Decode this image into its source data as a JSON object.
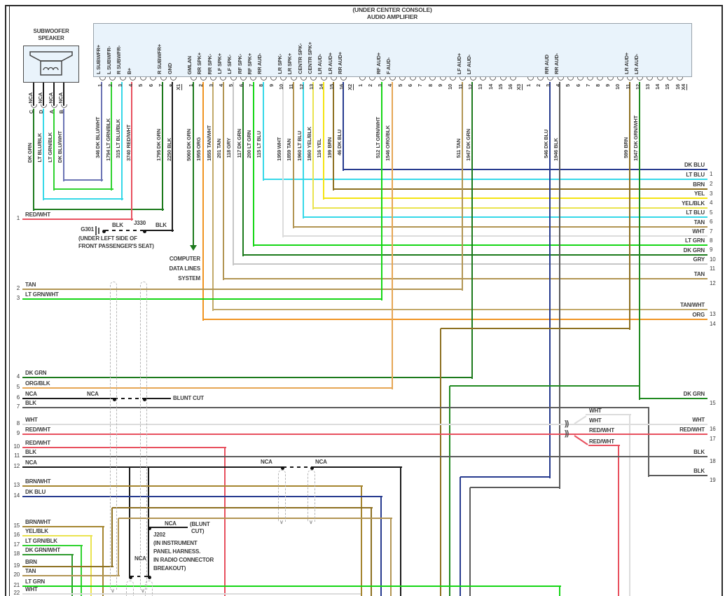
{
  "page_title": {
    "line1": "(UNDER CENTER CONSOLE)",
    "line2": "AUDIO AMPLIFIER"
  },
  "subwoofer": {
    "title1": "SUBWOOFER",
    "title2": "SPEAKER",
    "pins": [
      {
        "nca": "NCA",
        "letter": "C",
        "color_label": "DK GRN"
      },
      {
        "nca": "NCA",
        "letter": "D",
        "color_label": "LT BLU/BLK"
      },
      {
        "nca": "NCA",
        "letter": "A",
        "color_label": "LT GRN/BLK"
      },
      {
        "nca": "NCA",
        "letter": "B",
        "color_label": "DK BLU/WHT"
      }
    ]
  },
  "connectors": [
    {
      "id": "X1",
      "pins": [
        {
          "n": "1",
          "label": "L SUBWFR+",
          "color_label": "DK BLU/WHT",
          "circuit": "346"
        },
        {
          "n": "2",
          "label": "L SUBWFR-",
          "color_label": "LT GRN/BLK",
          "circuit": "1794"
        },
        {
          "n": "3",
          "label": "R SUBWFR-",
          "color_label": "LT BLU/BLK",
          "circuit": "315"
        },
        {
          "n": "4",
          "label": "B+",
          "color_label": "RED/WHT",
          "circuit": "3740"
        },
        {
          "n": "5"
        },
        {
          "n": "6"
        },
        {
          "n": "7",
          "label": "R SUBWFR+",
          "color_label": "DK GRN",
          "circuit": "1795"
        },
        {
          "n": "8",
          "label": "GND",
          "color_label": "BLK",
          "circuit": "2250"
        }
      ]
    },
    {
      "id": "X2",
      "pins": [
        {
          "n": "1",
          "label": "GMLAN",
          "color_label": "DK GRN",
          "circuit": "5060"
        },
        {
          "n": "2",
          "label": "RR SPK+",
          "color_label": "ORG",
          "circuit": "1955"
        },
        {
          "n": "3",
          "label": "RR SPK-",
          "color_label": "TAN/WHT",
          "circuit": "1855"
        },
        {
          "n": "4",
          "label": "LF SPK+",
          "color_label": "TAN",
          "circuit": "201"
        },
        {
          "n": "5",
          "label": "LF SPK-",
          "color_label": "GRY",
          "circuit": "118"
        },
        {
          "n": "6",
          "label": "RF SPK-",
          "color_label": "DK GRN",
          "circuit": "117"
        },
        {
          "n": "7",
          "label": "RF SPK+",
          "color_label": "LT GRN",
          "circuit": "200"
        },
        {
          "n": "8",
          "label": "RR AUD-",
          "color_label": "LT BLU",
          "circuit": "115"
        },
        {
          "n": "9"
        },
        {
          "n": "10",
          "label": "LR SPK-",
          "color_label": "WHT",
          "circuit": "1959"
        },
        {
          "n": "11",
          "label": "LR SPK+",
          "color_label": "TAN",
          "circuit": "1859"
        },
        {
          "n": "12",
          "label": "CENTR SPK-",
          "color_label": "LT BLU",
          "circuit": "1960"
        },
        {
          "n": "13",
          "label": "CENTR SPK+",
          "color_label": "YEL/BLK",
          "circuit": "1860"
        },
        {
          "n": "14",
          "label": "LR AUD-",
          "color_label": "YEL",
          "circuit": "116"
        },
        {
          "n": "15",
          "label": "LR AUD+",
          "color_label": "BRN",
          "circuit": "199"
        },
        {
          "n": "16",
          "label": "RR AUD+",
          "color_label": "DK BLU",
          "circuit": "46"
        }
      ]
    },
    {
      "id": "X3",
      "pins": [
        {
          "n": "1"
        },
        {
          "n": "2"
        },
        {
          "n": "3",
          "label": "RF AUD+",
          "color_label": "LT GRN/WHT",
          "circuit": "512"
        },
        {
          "n": "4",
          "label": "F AUD-",
          "color_label": "ORG/BLK",
          "circuit": "1546"
        },
        {
          "n": "5"
        },
        {
          "n": "6"
        },
        {
          "n": "7"
        },
        {
          "n": "8"
        },
        {
          "n": "9"
        },
        {
          "n": "10"
        },
        {
          "n": "11",
          "label": "LF AUD+",
          "color_label": "TAN",
          "circuit": "511"
        },
        {
          "n": "12",
          "label": "LF AUD-",
          "color_label": "DK GRN",
          "circuit": "1947"
        },
        {
          "n": "13"
        },
        {
          "n": "14"
        },
        {
          "n": "15"
        },
        {
          "n": "16"
        }
      ]
    },
    {
      "id": "X4",
      "pins": [
        {
          "n": "1"
        },
        {
          "n": "2"
        },
        {
          "n": "3",
          "label": "RR AUD",
          "color_label": "DK BLU",
          "circuit": "546"
        },
        {
          "n": "4",
          "label": "RR AUD-",
          "color_label": "BLK",
          "circuit": "1946"
        },
        {
          "n": "5"
        },
        {
          "n": "6"
        },
        {
          "n": "7"
        },
        {
          "n": "8"
        },
        {
          "n": "9"
        },
        {
          "n": "10"
        },
        {
          "n": "11",
          "label": "LR AUD+",
          "color_label": "BRN",
          "circuit": "599"
        },
        {
          "n": "12",
          "label": "LR AUD-",
          "color_label": "DK GRN/WHT",
          "circuit": "1547"
        },
        {
          "n": "13"
        },
        {
          "n": "14"
        },
        {
          "n": "15"
        },
        {
          "n": "16"
        }
      ]
    }
  ],
  "left_rows": [
    {
      "n": "1",
      "label": "RED/WHT"
    },
    {
      "n": "2",
      "label": "TAN"
    },
    {
      "n": "3",
      "label": "LT GRN/WHT"
    },
    {
      "n": "4",
      "label": "DK GRN"
    },
    {
      "n": "5",
      "label": "ORG/BLK"
    },
    {
      "n": "6",
      "label": "NCA"
    },
    {
      "n": "7",
      "label": "BLK"
    },
    {
      "n": "8",
      "label": "WHT"
    },
    {
      "n": "9",
      "label": "RED/WHT"
    },
    {
      "n": "10",
      "label": "RED/WHT"
    },
    {
      "n": "11",
      "label": "BLK"
    },
    {
      "n": "12",
      "label": "NCA"
    },
    {
      "n": "13",
      "label": "BRN/WHT"
    },
    {
      "n": "14",
      "label": "DK BLU"
    },
    {
      "n": "15",
      "label": "BRN/WHT"
    },
    {
      "n": "16",
      "label": "YEL/BLK"
    },
    {
      "n": "17",
      "label": "LT GRN/BLK"
    },
    {
      "n": "18",
      "label": "DK GRN/WHT"
    },
    {
      "n": "19",
      "label": "BRN"
    },
    {
      "n": "20",
      "label": "TAN"
    },
    {
      "n": "21",
      "label": "LT GRN"
    },
    {
      "n": "22",
      "label": "WHT"
    }
  ],
  "right_rows": [
    {
      "n": "1",
      "label": "DK BLU"
    },
    {
      "n": "2",
      "label": "LT BLU"
    },
    {
      "n": "3",
      "label": "BRN"
    },
    {
      "n": "4",
      "label": "YEL"
    },
    {
      "n": "5",
      "label": "YEL/BLK"
    },
    {
      "n": "6",
      "label": "LT BLU"
    },
    {
      "n": "7",
      "label": "TAN"
    },
    {
      "n": "8",
      "label": "WHT"
    },
    {
      "n": "9",
      "label": "LT GRN"
    },
    {
      "n": "10",
      "label": "DK GRN"
    },
    {
      "n": "11",
      "label": "GRY"
    },
    {
      "n": "12",
      "label": "TAN"
    },
    {
      "n": "13",
      "label": "TAN/WHT"
    },
    {
      "n": "14",
      "label": "ORG"
    },
    {
      "n": "15",
      "label": "DK GRN"
    },
    {
      "n": "16",
      "label": "WHT"
    },
    {
      "n": "17",
      "label": "RED/WHT"
    },
    {
      "n": "18",
      "label": "BLK"
    },
    {
      "n": "19",
      "label": "BLK"
    }
  ],
  "notes": {
    "g301": "G301",
    "j330": "J330",
    "blk_a": "BLK",
    "blk_b": "BLK",
    "g301_loc1": "(UNDER LEFT SIDE OF",
    "g301_loc2": "FRONT PASSENGER'S SEAT)",
    "computer1": "COMPUTER",
    "computer2": "DATA LINES",
    "computer3": "SYSTEM",
    "nca_row6": "NCA",
    "blunt_cut_row6": "BLUNT CUT",
    "nca_row12_a": "NCA",
    "nca_row12_b": "NCA",
    "nca_j202_stub": "NCA",
    "blunt1": "(BLUNT",
    "blunt2": "CUT)",
    "j202": "J202",
    "j202_l1": "(IN INSTRUMENT",
    "j202_l2": "PANEL HARNESS.",
    "j202_l3": "IN RADIO CONNECTOR",
    "j202_l4": "BREAKOUT)",
    "nca_j202_left": "NCA",
    "wht_a": "WHT",
    "wht_b": "WHT",
    "redwht_a": "RED/WHT",
    "redwht_b": "RED/WHT",
    "connector_symbol": "))"
  },
  "colors": {
    "dkgrn": "#1c7a1c",
    "dkgrn2": "#218a21",
    "ltgrn": "#15d615",
    "ltgrnw": "#15d615",
    "ltgrnb": "#2fd32f",
    "dkgrnw": "#2d9a2d",
    "dkblu": "#273b8f",
    "dkbluw": "#6b74b4",
    "ltblu": "#35d8e8",
    "ltblub": "#35d8e8",
    "redw": "#e8505e",
    "blk": "#1a1a1a",
    "blkw": "#5a5a5a",
    "wht": "#dcdcdc",
    "gry": "#c6c6c6",
    "tan": "#b29553",
    "tanw": "#c2a96a",
    "brn": "#8d7021",
    "brnw": "#a5852f",
    "yel": "#f4e412",
    "yelb": "#eae34f",
    "org": "#f09422",
    "orgb": "#e6a654",
    "border": "#2a2a2a"
  }
}
